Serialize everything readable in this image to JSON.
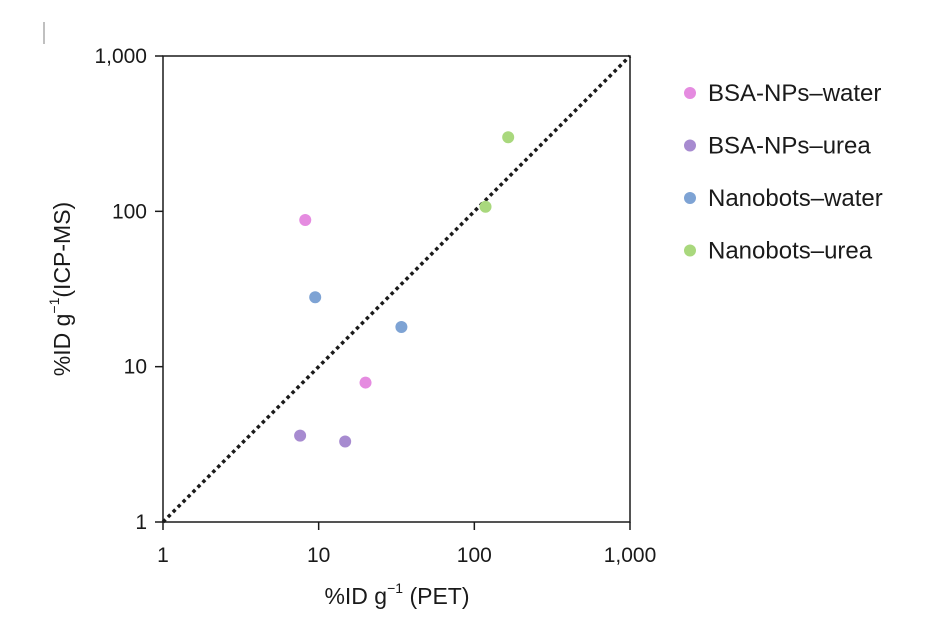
{
  "chart_data": {
    "type": "scatter",
    "x_scale": "log",
    "y_scale": "log",
    "xlim": [
      1,
      1000
    ],
    "ylim": [
      1,
      1000
    ],
    "xticks": [
      1,
      10,
      100,
      1000
    ],
    "yticks": [
      1,
      10,
      100,
      1000
    ],
    "xtick_labels": [
      "1",
      "10",
      "100",
      "1,000"
    ],
    "ytick_labels": [
      "1",
      "10",
      "100",
      "1,000"
    ],
    "xlabel": {
      "main": "%ID g",
      "sup": "−1",
      "rest": " (PET)"
    },
    "ylabel": {
      "main": "%ID g",
      "sup": "−1",
      "rest": "(ICP-MS)"
    },
    "grid": false,
    "legend_position": "right",
    "reference_line": {
      "style": "dotted",
      "from": [
        1,
        1
      ],
      "to": [
        1000,
        1000
      ]
    },
    "series": [
      {
        "name": "BSA-NPs–water",
        "color": "#e58be0",
        "points": [
          [
            8.2,
            88
          ],
          [
            20,
            7.9
          ]
        ]
      },
      {
        "name": "BSA-NPs–urea",
        "color": "#a78bd0",
        "points": [
          [
            7.6,
            3.6
          ],
          [
            14.8,
            3.3
          ]
        ]
      },
      {
        "name": "Nanobots–water",
        "color": "#7ea3d4",
        "points": [
          [
            9.5,
            28
          ],
          [
            34,
            18
          ]
        ]
      },
      {
        "name": "Nanobots–urea",
        "color": "#a9d87d",
        "points": [
          [
            165,
            300
          ],
          [
            118,
            107
          ]
        ]
      }
    ]
  }
}
